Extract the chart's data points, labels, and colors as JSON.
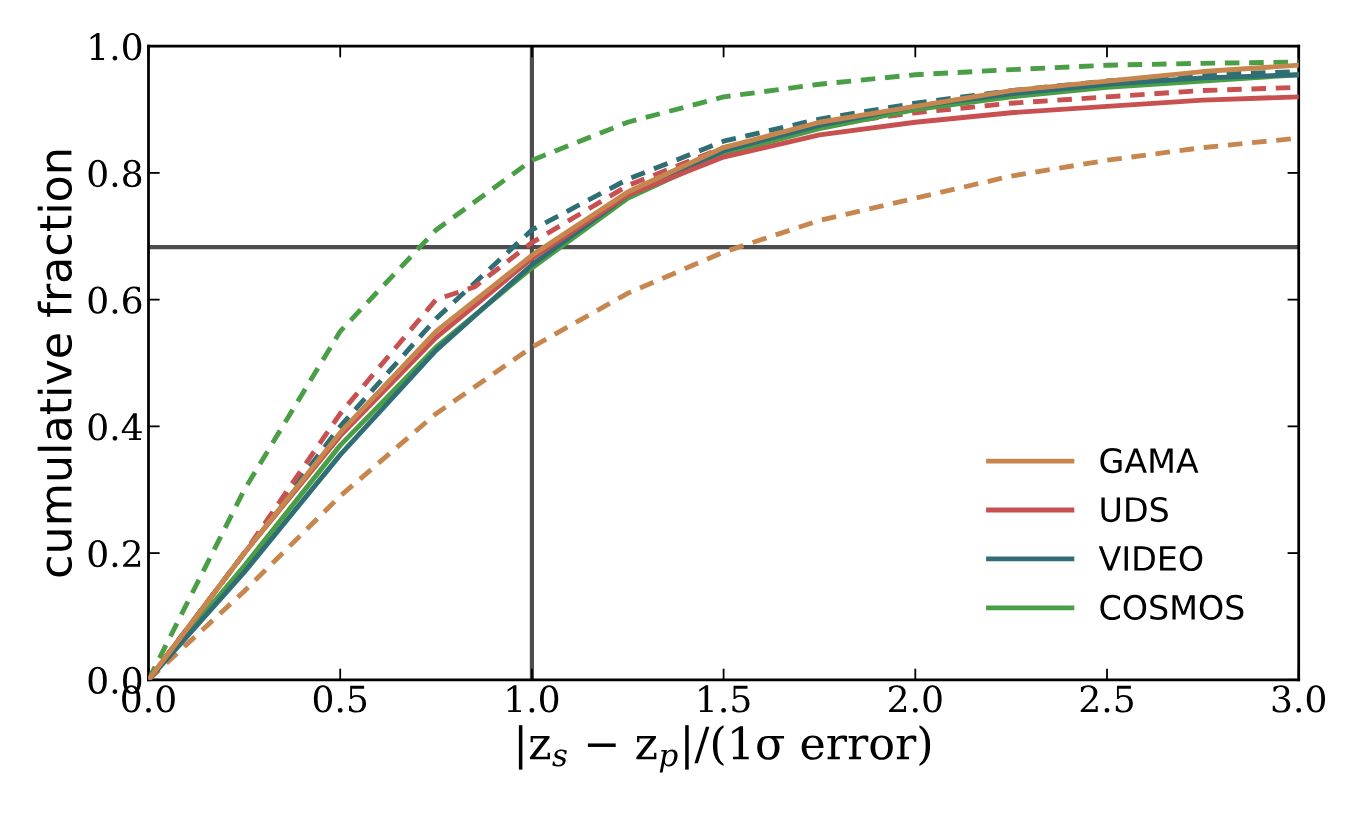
{
  "chart_data": {
    "type": "line",
    "xlabel": "|z$_{s}$ − z$_{p}$|/(1σ error)",
    "ylabel": "cumulative fraction",
    "xlim": [
      0.0,
      3.0
    ],
    "xticks": [
      {
        "value": 0,
        "label": "0.0"
      },
      0.5,
      {
        "value": 1,
        "label": "1.0"
      },
      1.5,
      {
        "value": 2,
        "label": "2.0"
      },
      2.5,
      {
        "value": 3,
        "label": "3.0"
      }
    ],
    "ylim": [
      0.0,
      1.0
    ],
    "yticks": [
      {
        "value": 0,
        "label": "0.0"
      },
      0.2,
      0.4,
      0.6,
      0.8,
      {
        "value": 1,
        "label": "1.0"
      }
    ],
    "grid": false,
    "legend": "bottom right",
    "marker": "none",
    "ref_lines": [
      {
        "axis": "x",
        "value": 1.0,
        "color": "#4d4d4d"
      },
      {
        "axis": "y",
        "value": 0.683,
        "color": "#4d4d4d"
      }
    ],
    "series": [
      {
        "name": "GAMA",
        "color": "#c8864f",
        "line_style": "solid",
        "x": [
          0,
          0.25,
          0.5,
          0.75,
          1.0,
          1.25,
          1.5,
          1.75,
          2.0,
          2.25,
          2.5,
          2.75,
          3.0
        ],
        "values": [
          0,
          0.2,
          0.39,
          0.55,
          0.67,
          0.77,
          0.84,
          0.88,
          0.905,
          0.93,
          0.945,
          0.96,
          0.97
        ]
      },
      {
        "name": "UDS",
        "color": "#c85050",
        "line_style": "solid",
        "x": [
          0,
          0.25,
          0.5,
          0.75,
          1.0,
          1.25,
          1.5,
          1.75,
          2.0,
          2.25,
          2.5,
          2.75,
          3.0
        ],
        "values": [
          0,
          0.2,
          0.385,
          0.54,
          0.665,
          0.765,
          0.825,
          0.86,
          0.88,
          0.895,
          0.905,
          0.915,
          0.92
        ]
      },
      {
        "name": "VIDEO",
        "color": "#2e6e74",
        "line_style": "solid",
        "x": [
          0,
          0.25,
          0.5,
          0.75,
          1.0,
          1.25,
          1.5,
          1.75,
          2.0,
          2.25,
          2.5,
          2.75,
          3.0
        ],
        "values": [
          0,
          0.17,
          0.355,
          0.52,
          0.655,
          0.765,
          0.835,
          0.875,
          0.905,
          0.925,
          0.94,
          0.95,
          0.955
        ]
      },
      {
        "name": "COSMOS",
        "color": "#4a9e46",
        "line_style": "solid",
        "x": [
          0,
          0.25,
          0.5,
          0.75,
          1.0,
          1.25,
          1.5,
          1.75,
          2.0,
          2.25,
          2.5,
          2.75,
          3.0
        ],
        "values": [
          0,
          0.18,
          0.37,
          0.525,
          0.65,
          0.76,
          0.83,
          0.87,
          0.9,
          0.92,
          0.935,
          0.945,
          0.955
        ]
      },
      {
        "color": "#c8864f",
        "line_style": "dashed",
        "x": [
          0,
          0.25,
          0.5,
          0.75,
          1.0,
          1.25,
          1.5,
          1.75,
          2.0,
          2.25,
          2.5,
          2.75,
          3.0
        ],
        "values": [
          0,
          0.14,
          0.29,
          0.42,
          0.525,
          0.61,
          0.675,
          0.725,
          0.76,
          0.795,
          0.82,
          0.84,
          0.855
        ]
      },
      {
        "color": "#c85050",
        "line_style": "dashed",
        "x": [
          0,
          0.25,
          0.5,
          0.75,
          0.85,
          1.0,
          1.25,
          1.5,
          1.75,
          2.0,
          2.25,
          2.5,
          2.75,
          3.0
        ],
        "values": [
          0,
          0.2,
          0.42,
          0.6,
          0.62,
          0.69,
          0.78,
          0.84,
          0.875,
          0.895,
          0.91,
          0.92,
          0.93,
          0.935
        ]
      },
      {
        "color": "#2e6e74",
        "line_style": "dashed",
        "x": [
          0,
          0.25,
          0.5,
          0.75,
          1.0,
          1.25,
          1.5,
          1.75,
          2.0,
          2.25,
          2.5,
          2.75,
          3.0
        ],
        "values": [
          0,
          0.2,
          0.4,
          0.57,
          0.71,
          0.79,
          0.85,
          0.885,
          0.91,
          0.93,
          0.945,
          0.955,
          0.96
        ]
      },
      {
        "color": "#4a9e46",
        "line_style": "dashed",
        "x": [
          0,
          0.25,
          0.5,
          0.75,
          1.0,
          1.25,
          1.5,
          1.75,
          2.0,
          2.25,
          2.5,
          2.75,
          3.0
        ],
        "values": [
          0,
          0.3,
          0.55,
          0.71,
          0.82,
          0.88,
          0.92,
          0.94,
          0.955,
          0.963,
          0.97,
          0.973,
          0.975
        ]
      }
    ]
  }
}
